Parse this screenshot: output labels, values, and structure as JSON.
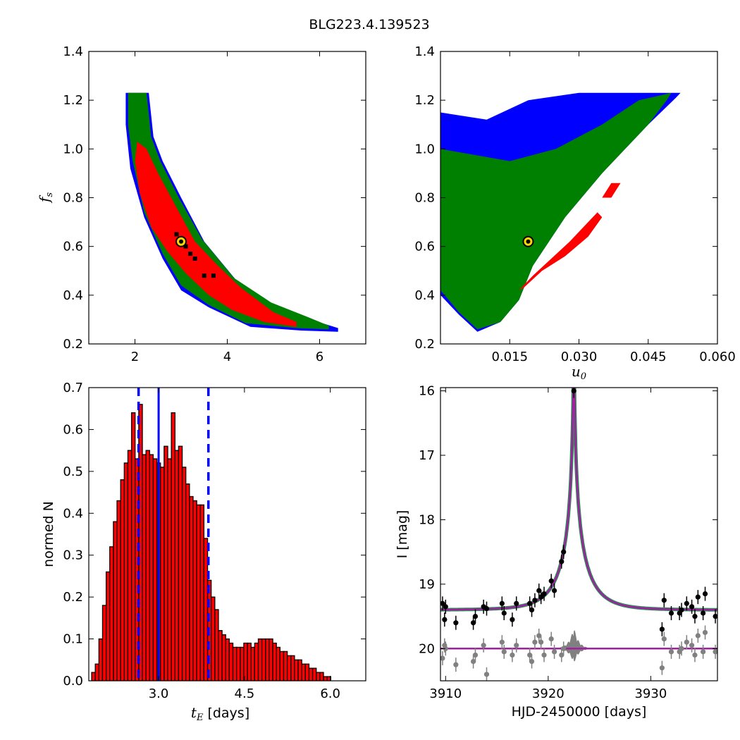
{
  "figure": {
    "title": "BLG223.4.139523"
  },
  "colors": {
    "blue": "#0000ff",
    "green": "#008000",
    "red": "#ff0000",
    "black": "#000000",
    "gray": "#808080",
    "magenta": "#a020a0",
    "teal": "#2e8b57",
    "marker": "#ffd700"
  },
  "chart_data": [
    {
      "id": "fs_vs_tE",
      "type": "heatmap",
      "xlim": [
        1,
        7
      ],
      "ylim": [
        0.2,
        1.4
      ],
      "xticks": [
        "2",
        "4",
        "6"
      ],
      "yticks": [
        "0.2",
        "0.4",
        "0.6",
        "0.8",
        "1.0",
        "1.2",
        "1.4"
      ],
      "xlabel": "",
      "ylabel": "f",
      "ylabel_sub": "s",
      "legend": "none",
      "regions": [
        {
          "name": "blue",
          "points": [
            [
              1.8,
              1.23
            ],
            [
              2.3,
              1.23
            ],
            [
              2.4,
              1.05
            ],
            [
              2.6,
              0.95
            ],
            [
              3.0,
              0.8
            ],
            [
              3.5,
              0.62
            ],
            [
              4.2,
              0.46
            ],
            [
              5.0,
              0.36
            ],
            [
              5.8,
              0.3
            ],
            [
              6.4,
              0.265
            ],
            [
              6.4,
              0.25
            ],
            [
              5.6,
              0.255
            ],
            [
              4.5,
              0.27
            ],
            [
              3.6,
              0.35
            ],
            [
              3.0,
              0.42
            ],
            [
              2.6,
              0.55
            ],
            [
              2.2,
              0.72
            ],
            [
              1.9,
              0.92
            ],
            [
              1.8,
              1.1
            ]
          ]
        },
        {
          "name": "green",
          "points": [
            [
              1.85,
              1.23
            ],
            [
              2.25,
              1.23
            ],
            [
              2.35,
              1.05
            ],
            [
              2.55,
              0.95
            ],
            [
              2.95,
              0.8
            ],
            [
              3.45,
              0.63
            ],
            [
              4.15,
              0.47
            ],
            [
              4.95,
              0.37
            ],
            [
              5.75,
              0.31
            ],
            [
              6.2,
              0.275
            ],
            [
              6.2,
              0.26
            ],
            [
              5.5,
              0.265
            ],
            [
              4.4,
              0.285
            ],
            [
              3.6,
              0.36
            ],
            [
              3.0,
              0.44
            ],
            [
              2.6,
              0.57
            ],
            [
              2.2,
              0.74
            ],
            [
              1.95,
              0.95
            ],
            [
              1.85,
              1.1
            ]
          ]
        },
        {
          "name": "red",
          "points": [
            [
              2.05,
              1.03
            ],
            [
              2.25,
              1.0
            ],
            [
              2.5,
              0.9
            ],
            [
              2.9,
              0.76
            ],
            [
              3.3,
              0.62
            ],
            [
              3.8,
              0.52
            ],
            [
              4.3,
              0.43
            ],
            [
              5.0,
              0.33
            ],
            [
              5.5,
              0.29
            ],
            [
              5.5,
              0.27
            ],
            [
              4.8,
              0.29
            ],
            [
              4.1,
              0.34
            ],
            [
              3.6,
              0.4
            ],
            [
              3.1,
              0.49
            ],
            [
              2.7,
              0.58
            ],
            [
              2.35,
              0.68
            ],
            [
              2.1,
              0.82
            ],
            [
              2.0,
              0.95
            ]
          ]
        }
      ],
      "best_samples": [
        [
          2.9,
          0.65
        ],
        [
          3.1,
          0.6
        ],
        [
          3.2,
          0.57
        ],
        [
          3.3,
          0.55
        ],
        [
          3.5,
          0.48
        ],
        [
          3.7,
          0.48
        ],
        [
          3.0,
          0.62
        ]
      ],
      "best_fit": [
        3.0,
        0.62
      ]
    },
    {
      "id": "fs_vs_u0",
      "type": "heatmap",
      "xlim": [
        0.0,
        0.06
      ],
      "ylim": [
        0.2,
        1.4
      ],
      "xticks": [
        "0.015",
        "0.030",
        "0.045",
        "0.060"
      ],
      "yticks": [
        "0.2",
        "0.4",
        "0.6",
        "0.8",
        "1.0",
        "1.2",
        "1.4"
      ],
      "xlabel": "u",
      "xlabel_sub": "0",
      "ylabel": "",
      "legend": "none",
      "regions": [
        {
          "name": "blue",
          "points": [
            [
              0.0,
              1.15
            ],
            [
              0.01,
              1.12
            ],
            [
              0.019,
              1.2
            ],
            [
              0.03,
              1.23
            ],
            [
              0.052,
              1.23
            ],
            [
              0.051,
              1.21
            ],
            [
              0.045,
              1.1
            ],
            [
              0.035,
              0.9
            ],
            [
              0.027,
              0.72
            ],
            [
              0.02,
              0.52
            ],
            [
              0.017,
              0.38
            ],
            [
              0.013,
              0.29
            ],
            [
              0.008,
              0.25
            ],
            [
              0.004,
              0.32
            ],
            [
              0.0,
              0.4
            ]
          ]
        },
        {
          "name": "green",
          "points": [
            [
              0.0,
              1.0
            ],
            [
              0.006,
              0.98
            ],
            [
              0.015,
              0.95
            ],
            [
              0.025,
              1.0
            ],
            [
              0.035,
              1.1
            ],
            [
              0.043,
              1.2
            ],
            [
              0.05,
              1.23
            ],
            [
              0.049,
              1.2
            ],
            [
              0.045,
              1.1
            ],
            [
              0.035,
              0.9
            ],
            [
              0.027,
              0.72
            ],
            [
              0.02,
              0.52
            ],
            [
              0.017,
              0.38
            ],
            [
              0.013,
              0.29
            ],
            [
              0.008,
              0.26
            ],
            [
              0.004,
              0.33
            ],
            [
              0.0,
              0.42
            ]
          ]
        },
        {
          "name": "red",
          "points": [
            [
              0.028,
              0.62
            ],
            [
              0.031,
              0.68
            ],
            [
              0.034,
              0.74
            ],
            [
              0.035,
              0.72
            ],
            [
              0.032,
              0.64
            ],
            [
              0.027,
              0.56
            ],
            [
              0.022,
              0.5
            ],
            [
              0.018,
              0.43
            ],
            [
              0.017,
              0.42
            ],
            [
              0.02,
              0.48
            ],
            [
              0.024,
              0.55
            ]
          ]
        },
        {
          "name": "red2",
          "points": [
            [
              0.035,
              0.8
            ],
            [
              0.037,
              0.86
            ],
            [
              0.039,
              0.86
            ],
            [
              0.037,
              0.8
            ]
          ]
        }
      ],
      "best_fit": [
        0.019,
        0.62
      ]
    },
    {
      "id": "tE_histogram",
      "type": "bar",
      "xlim": [
        1.78,
        6.62
      ],
      "ylim": [
        0.0,
        0.7
      ],
      "xticks": [
        "3.0",
        "4.5",
        "6.0"
      ],
      "yticks": [
        "0.0",
        "0.1",
        "0.2",
        "0.3",
        "0.4",
        "0.5",
        "0.6",
        "0.7"
      ],
      "xlabel": "t",
      "xlabel_sub": "E",
      "xlabel_rest": "[days]",
      "ylabel": "normed N",
      "bin_start": 1.83,
      "bin_width": 0.0633,
      "values": [
        0.02,
        0.04,
        0.1,
        0.18,
        0.26,
        0.32,
        0.38,
        0.43,
        0.48,
        0.52,
        0.55,
        0.64,
        0.53,
        0.66,
        0.54,
        0.55,
        0.54,
        0.53,
        0.52,
        0.51,
        0.56,
        0.53,
        0.64,
        0.55,
        0.56,
        0.51,
        0.47,
        0.44,
        0.43,
        0.42,
        0.42,
        0.34,
        0.24,
        0.2,
        0.17,
        0.12,
        0.11,
        0.1,
        0.09,
        0.08,
        0.08,
        0.08,
        0.09,
        0.09,
        0.08,
        0.09,
        0.1,
        0.1,
        0.1,
        0.1,
        0.09,
        0.08,
        0.07,
        0.07,
        0.06,
        0.06,
        0.05,
        0.05,
        0.04,
        0.04,
        0.03,
        0.03,
        0.02,
        0.02,
        0.01,
        0.01,
        0.0,
        0.0,
        0.0,
        0.0,
        0.0,
        0.0
      ],
      "vlines": {
        "median": 3.0,
        "lower": 2.65,
        "upper": 3.87
      }
    },
    {
      "id": "light_curve",
      "type": "scatter",
      "xlim": [
        3909.5,
        3936.5
      ],
      "ylim": [
        20.5,
        15.95
      ],
      "xticks": [
        "3910",
        "3920",
        "3930"
      ],
      "yticks": [
        "16",
        "17",
        "18",
        "19",
        "20"
      ],
      "xlabel": "HJD-2450000 [days]",
      "ylabel": "I [mag]",
      "model": {
        "t0": 3922.5,
        "tE": 3.0,
        "u0": 0.019,
        "fs": 0.62,
        "baseline": 19.4
      },
      "data": [
        [
          3909.7,
          19.3
        ],
        [
          3909.9,
          19.55
        ],
        [
          3910.0,
          19.35
        ],
        [
          3911.0,
          19.6
        ],
        [
          3912.7,
          19.6
        ],
        [
          3912.9,
          19.5
        ],
        [
          3913.7,
          19.35
        ],
        [
          3914.0,
          19.38
        ],
        [
          3915.5,
          19.3
        ],
        [
          3915.7,
          19.45
        ],
        [
          3916.5,
          19.55
        ],
        [
          3916.9,
          19.3
        ],
        [
          3918.2,
          19.3
        ],
        [
          3918.4,
          19.4
        ],
        [
          3918.7,
          19.25
        ],
        [
          3919.1,
          19.1
        ],
        [
          3919.3,
          19.2
        ],
        [
          3919.6,
          19.15
        ],
        [
          3920.3,
          18.95
        ],
        [
          3920.6,
          19.1
        ],
        [
          3921.3,
          18.65
        ],
        [
          3921.5,
          18.5
        ],
        [
          3922.5,
          16.0
        ],
        [
          3931.1,
          19.7
        ],
        [
          3931.3,
          19.25
        ],
        [
          3932.0,
          19.45
        ],
        [
          3932.8,
          19.45
        ],
        [
          3933.0,
          19.4
        ],
        [
          3933.5,
          19.3
        ],
        [
          3934.0,
          19.35
        ],
        [
          3934.3,
          19.5
        ],
        [
          3934.6,
          19.2
        ],
        [
          3935.1,
          19.45
        ],
        [
          3935.3,
          19.15
        ],
        [
          3936.3,
          19.5
        ]
      ],
      "residuals": [
        [
          3909.7,
          20.15
        ],
        [
          3909.9,
          19.95
        ],
        [
          3910.0,
          20.0
        ],
        [
          3911.0,
          20.25
        ],
        [
          3912.7,
          20.2
        ],
        [
          3912.9,
          20.1
        ],
        [
          3913.7,
          19.95
        ],
        [
          3914.0,
          20.4
        ],
        [
          3915.5,
          19.9
        ],
        [
          3915.7,
          20.05
        ],
        [
          3916.5,
          20.1
        ],
        [
          3916.9,
          19.95
        ],
        [
          3918.2,
          20.1
        ],
        [
          3918.4,
          20.2
        ],
        [
          3918.7,
          19.9
        ],
        [
          3919.1,
          19.8
        ],
        [
          3919.3,
          19.9
        ],
        [
          3919.6,
          20.1
        ],
        [
          3920.3,
          19.85
        ],
        [
          3920.6,
          20.05
        ],
        [
          3921.3,
          20.1
        ],
        [
          3921.5,
          20.0
        ],
        [
          3931.1,
          20.3
        ],
        [
          3931.3,
          19.85
        ],
        [
          3932.0,
          20.05
        ],
        [
          3932.8,
          20.05
        ],
        [
          3933.0,
          20.0
        ],
        [
          3933.5,
          19.9
        ],
        [
          3934.0,
          19.95
        ],
        [
          3934.3,
          20.1
        ],
        [
          3934.6,
          19.8
        ],
        [
          3935.1,
          20.05
        ],
        [
          3935.3,
          19.75
        ],
        [
          3936.3,
          20.05
        ]
      ]
    }
  ]
}
